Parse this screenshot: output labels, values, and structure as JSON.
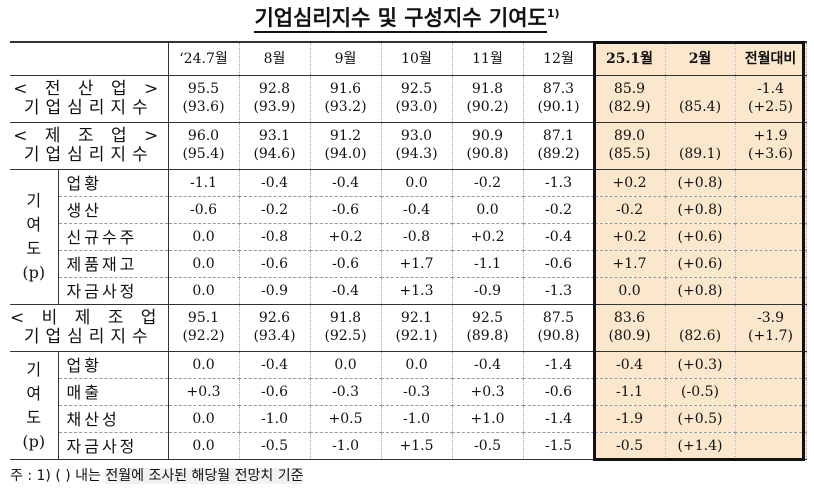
{
  "title": "기업심리지수 및 구성지수 기여도",
  "title_sup": "1)",
  "header": [
    "‘24.7월",
    "8월",
    "9월",
    "10월",
    "11월",
    "12월",
    "25.1월",
    "2월",
    "전월대비"
  ],
  "sections": [
    {
      "name": "< 전 산 업 >",
      "subname": "기업심리지수",
      "values": [
        [
          "95.5",
          "(93.6)"
        ],
        [
          "92.8",
          "(93.9)"
        ],
        [
          "91.6",
          "(93.2)"
        ],
        [
          "92.5",
          "(93.0)"
        ],
        [
          "91.8",
          "(90.2)"
        ],
        [
          "87.3",
          "(90.1)"
        ],
        [
          "85.9",
          "(82.9)"
        ],
        [
          "",
          "(85.4)"
        ],
        [
          "-1.4",
          "(+2.5)"
        ]
      ]
    },
    {
      "name": "< 제 조 업 >",
      "subname": "기업심리지수",
      "values": [
        [
          "96.0",
          "(95.4)"
        ],
        [
          "93.1",
          "(94.6)"
        ],
        [
          "91.2",
          "(94.0)"
        ],
        [
          "93.0",
          "(94.3)"
        ],
        [
          "90.9",
          "(90.8)"
        ],
        [
          "87.1",
          "(89.2)"
        ],
        [
          "89.0",
          "(85.5)"
        ],
        [
          "",
          "(89.1)"
        ],
        [
          "+1.9",
          "(+3.6)"
        ]
      ],
      "contrib_label": [
        "기",
        "여",
        "도",
        "(p)"
      ],
      "contrib_rows": [
        {
          "label": "업황",
          "values": [
            "-1.1",
            "-0.4",
            "-0.4",
            "0.0",
            "-0.2",
            "-1.3",
            "+0.2",
            "(+0.8)",
            ""
          ]
        },
        {
          "label": "생산",
          "values": [
            "-0.6",
            "-0.2",
            "-0.6",
            "-0.4",
            "0.0",
            "-0.2",
            "-0.2",
            "(+0.8)",
            ""
          ]
        },
        {
          "label": "신규수주",
          "values": [
            "0.0",
            "-0.8",
            "+0.2",
            "-0.8",
            "+0.2",
            "-0.4",
            "+0.2",
            "(+0.6)",
            ""
          ]
        },
        {
          "label": "제품재고",
          "values": [
            "0.0",
            "-0.6",
            "-0.6",
            "+1.7",
            "-1.1",
            "-0.6",
            "+1.7",
            "(+0.6)",
            ""
          ]
        },
        {
          "label": "자금사정",
          "values": [
            "0.0",
            "-0.9",
            "-0.4",
            "+1.3",
            "-0.9",
            "-1.3",
            "0.0",
            "(+0.8)",
            ""
          ]
        }
      ]
    },
    {
      "name": "< 비 제 조 업 >",
      "subname": "기업심리지수",
      "values": [
        [
          "95.1",
          "(92.2)"
        ],
        [
          "92.6",
          "(93.4)"
        ],
        [
          "91.8",
          "(92.5)"
        ],
        [
          "92.1",
          "(92.1)"
        ],
        [
          "92.5",
          "(89.8)"
        ],
        [
          "87.5",
          "(90.8)"
        ],
        [
          "83.6",
          "(80.9)"
        ],
        [
          "",
          "(82.6)"
        ],
        [
          "-3.9",
          "(+1.7)"
        ]
      ],
      "contrib_label": [
        "기",
        "여",
        "도",
        "(p)"
      ],
      "contrib_rows": [
        {
          "label": "업황",
          "values": [
            "0.0",
            "-0.4",
            "0.0",
            "0.0",
            "-0.4",
            "-1.4",
            "-0.4",
            "(+0.3)",
            ""
          ]
        },
        {
          "label": "매출",
          "values": [
            "+0.3",
            "-0.6",
            "-0.3",
            "-0.3",
            "+0.3",
            "-0.6",
            "-1.1",
            "(-0.5)",
            ""
          ]
        },
        {
          "label": "채산성",
          "values": [
            "0.0",
            "-1.0",
            "+0.5",
            "-1.0",
            "+1.0",
            "-1.4",
            "-1.9",
            "(+0.5)",
            ""
          ]
        },
        {
          "label": "자금사정",
          "values": [
            "0.0",
            "-0.5",
            "-1.0",
            "+1.5",
            "-0.5",
            "-1.5",
            "-0.5",
            "(+1.4)",
            ""
          ]
        }
      ]
    }
  ],
  "footnote": {
    "prefix": "주 : 1) (    ) 내는 ",
    "gray": "전월에 조사된 해당월 전망치 기준"
  }
}
